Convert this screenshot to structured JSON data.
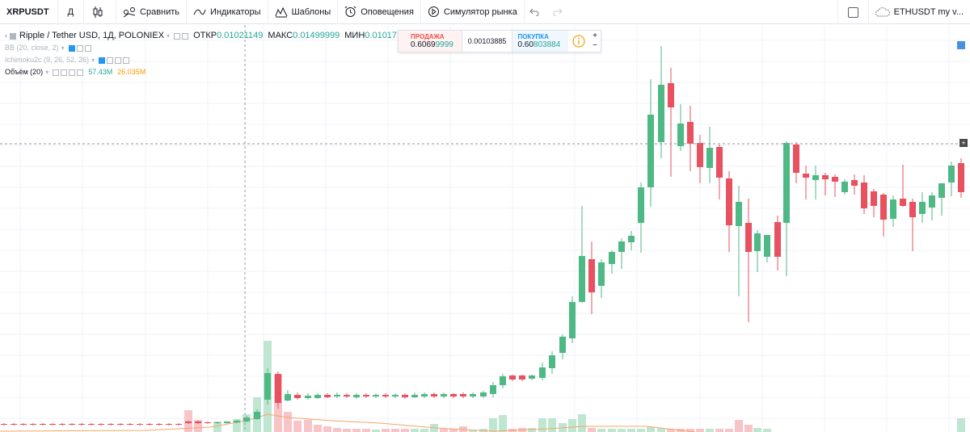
{
  "toolbar": {
    "symbol": "XRPUSDT",
    "interval": "Д",
    "compare": "Сравнить",
    "indicators": "Индикаторы",
    "templates": "Шаблоны",
    "alerts": "Оповещения",
    "replay": "Симулятор рынка",
    "watchlist_label": "ETHUSDT my v..."
  },
  "legend": {
    "title": "Ripple / Tether USD, 1Д, POLONIEX",
    "open_label": "ОТКР",
    "open_value": "0.01021149",
    "high_label": "МАКС",
    "high_value": "0.01499999",
    "low_label": "МИН",
    "low_value": "0.01017",
    "bb": "BB (20, close, 2)",
    "ichimoku": "Ichimoku2c (9, 26, 52, 26)",
    "volume": "Объём (20)",
    "volume_value": "57.43M",
    "volume_ma": "26.035M"
  },
  "trade": {
    "sell_label": "ПРОДАЖА",
    "sell_value_main": "0.6069",
    "sell_value_tail": "9999",
    "spread": "0.00103885",
    "buy_label": "ПОКУПКА",
    "buy_value_main": "0.60",
    "buy_value_tail": "803884"
  },
  "colors": {
    "up": "#4fb985",
    "down": "#e8515f",
    "up_volume": "#bfe6d1",
    "down_volume": "#f7c4c8",
    "grid": "#f0f3fa",
    "volume_ma": "#f5a56a"
  },
  "chart_data": {
    "type": "candlestick",
    "symbol": "XRPUSDT",
    "exchange": "POLONIEX",
    "interval": "1Д"
  }
}
